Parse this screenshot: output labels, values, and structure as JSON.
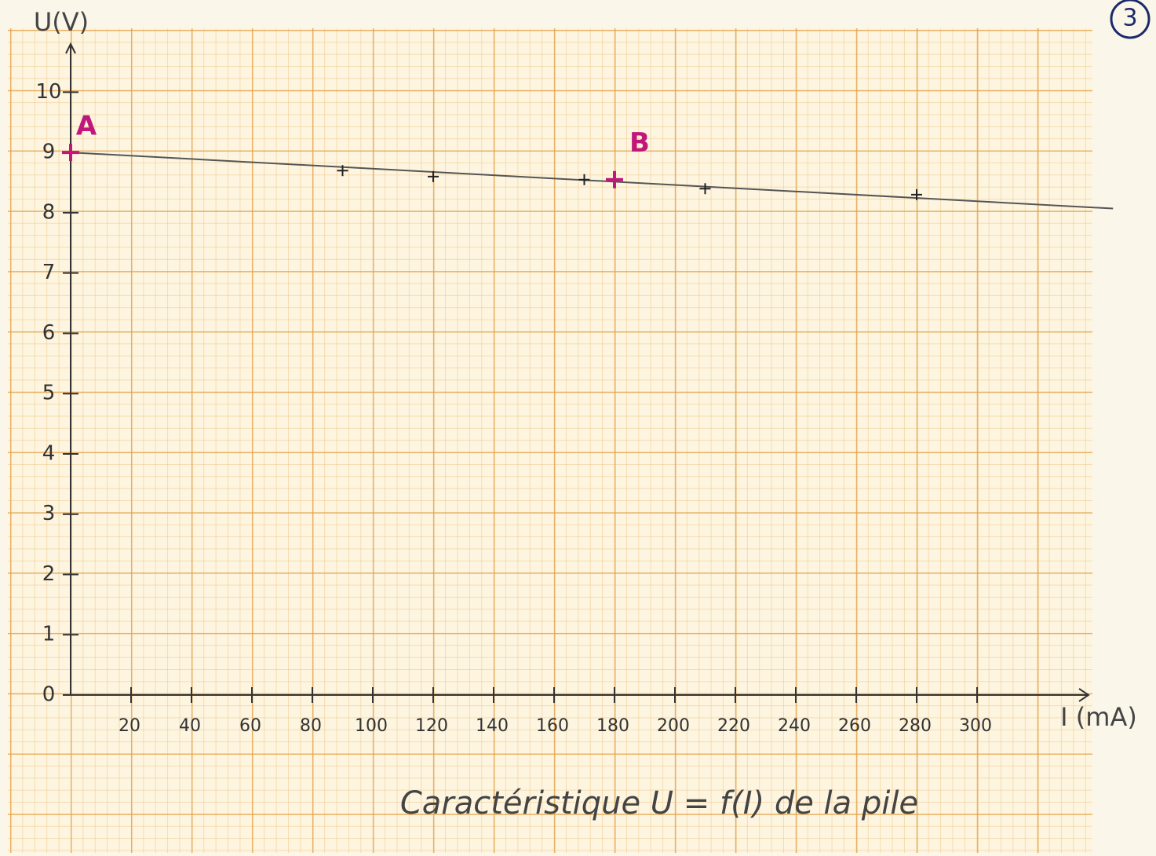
{
  "chart_data": {
    "type": "scatter",
    "title": "Caractéristique U = f(I) de la pile",
    "page_number": "3",
    "x_label": "I (mA)",
    "y_label": "U(V)",
    "xlim": [
      0,
      340
    ],
    "ylim": [
      0,
      10.8
    ],
    "xticks": [
      20,
      40,
      60,
      80,
      100,
      120,
      140,
      160,
      180,
      200,
      220,
      240,
      260,
      280,
      300
    ],
    "yticks": [
      0,
      1,
      2,
      3,
      4,
      5,
      6,
      7,
      8,
      9,
      10
    ],
    "series": [
      {
        "color": "#222222",
        "x": [
          90,
          120,
          170,
          210,
          280
        ],
        "values": [
          8.7,
          8.6,
          8.55,
          8.4,
          8.3
        ]
      },
      {
        "color": "#c0187a",
        "x": [
          0,
          180
        ],
        "values": [
          9.0,
          8.55
        ],
        "labels": [
          "A",
          "B"
        ]
      }
    ],
    "fit_line": {
      "color": "#555555",
      "x": [
        0,
        345
      ],
      "values": [
        9.0,
        8.07
      ]
    }
  }
}
